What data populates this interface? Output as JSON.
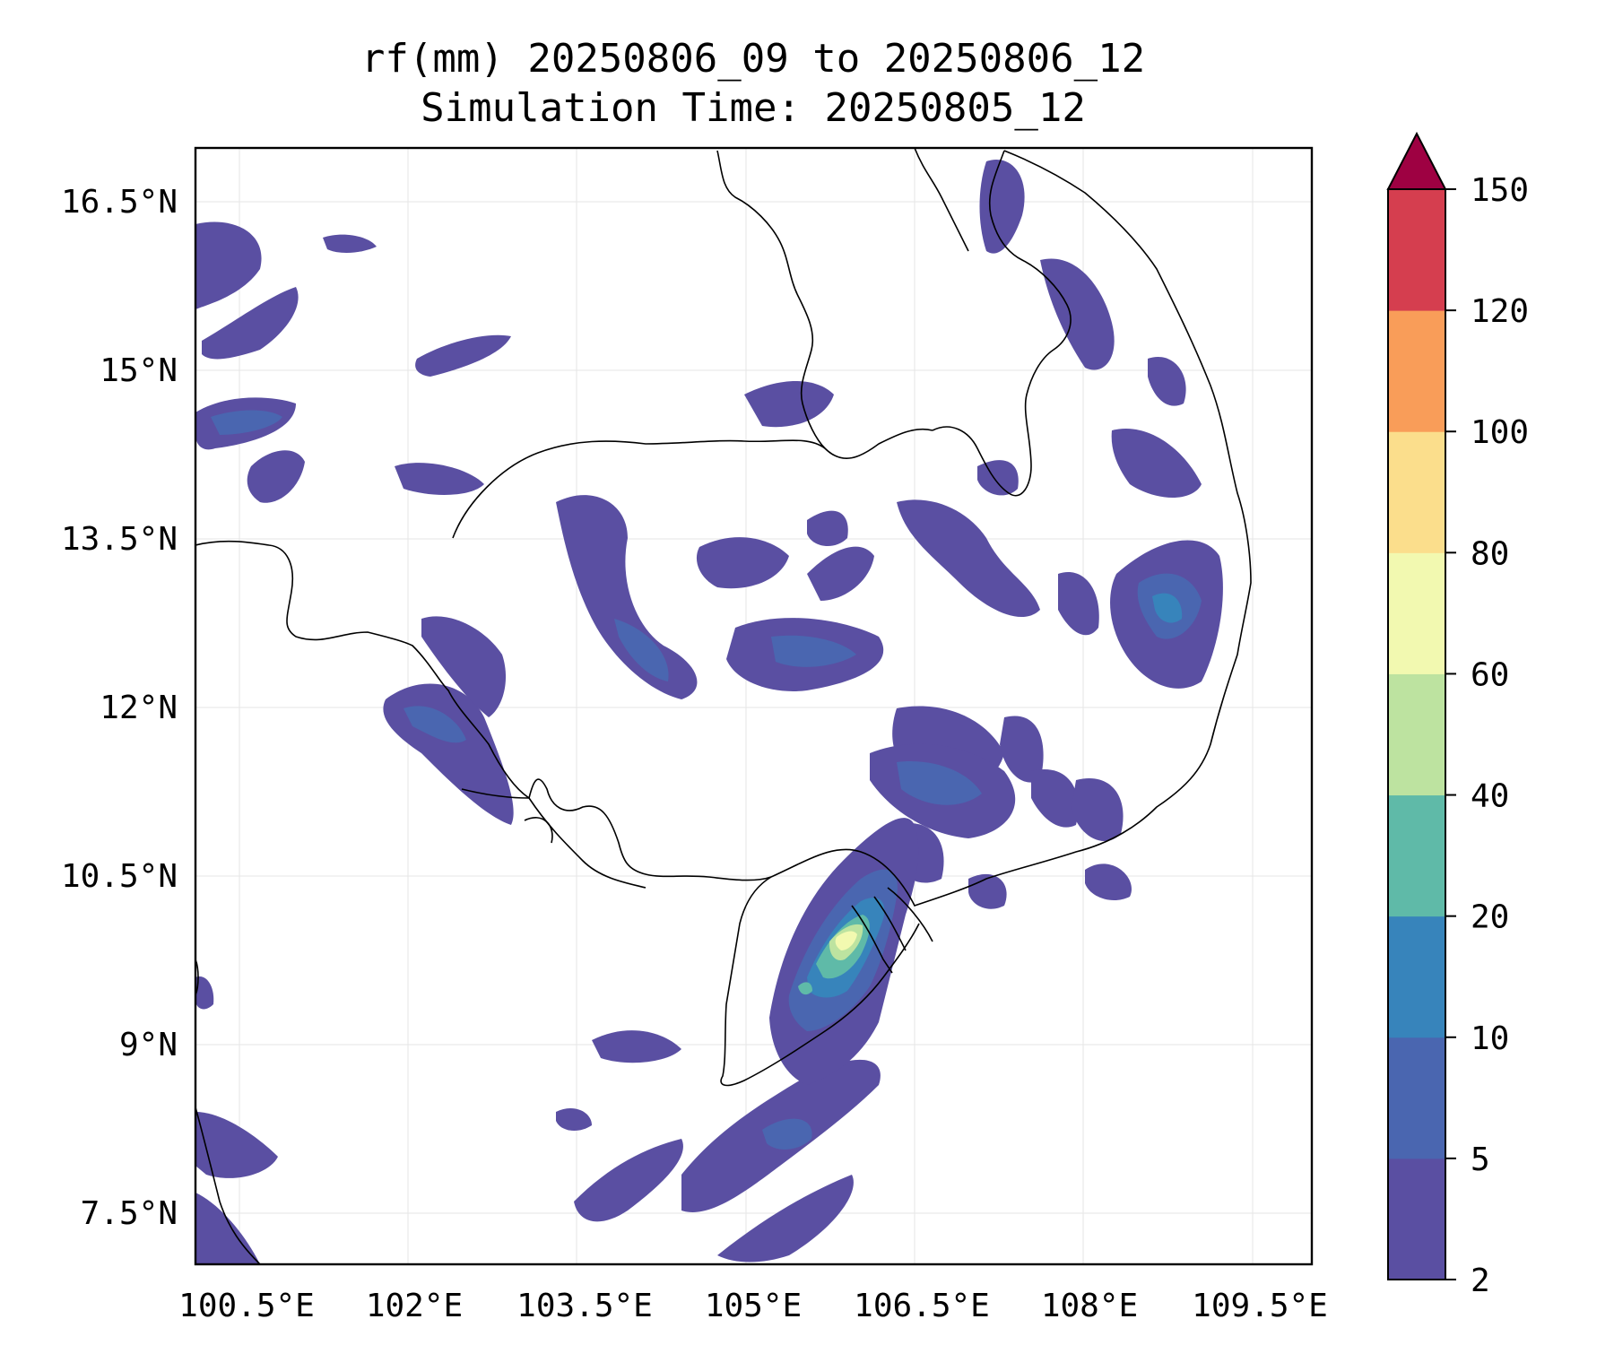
{
  "title_line1": "rf(mm) 20250806_09 to 20250806_12",
  "title_line2": "Simulation Time: 20250805_12",
  "x_ticks": [
    "100.5°E",
    "102°E",
    "103.5°E",
    "105°E",
    "106.5°E",
    "108°E",
    "109.5°E"
  ],
  "y_ticks": [
    "16.5°N",
    "15°N",
    "13.5°N",
    "12°N",
    "10.5°N",
    "9°N",
    "7.5°N"
  ],
  "colorbar": {
    "levels": [
      "2",
      "5",
      "10",
      "20",
      "40",
      "60",
      "80",
      "100",
      "120",
      "150"
    ],
    "colors": [
      "#5a4fa2",
      "#4a66b0",
      "#3784bb",
      "#5fbaa8",
      "#bde3a0",
      "#f2f9b0",
      "#fbde8c",
      "#f99d59",
      "#d53e4f",
      "#9e0142"
    ],
    "extend": "max"
  },
  "map": {
    "type": "filled-contour",
    "variable": "rf(mm)",
    "lon_range": [
      100.5,
      109.9
    ],
    "lat_range": [
      7.1,
      17.0
    ],
    "grid": true
  }
}
